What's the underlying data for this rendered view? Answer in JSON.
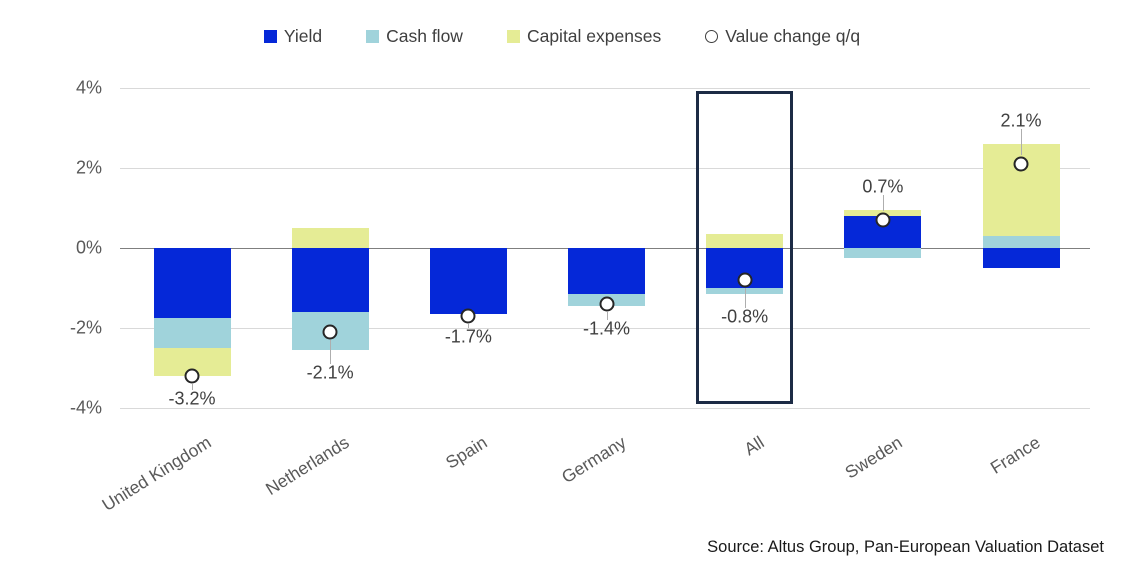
{
  "legend": [
    {
      "label": "Yield",
      "swatch": "square",
      "color": "#0528d8"
    },
    {
      "label": "Cash flow",
      "swatch": "square",
      "color": "#a0d3db"
    },
    {
      "label": "Capital expenses",
      "swatch": "square",
      "color": "#e5ec95"
    },
    {
      "label": "Value change q/q",
      "swatch": "circle",
      "color": "#ffffff"
    }
  ],
  "chart_data": {
    "type": "bar",
    "stacked": true,
    "grid": "horizontal",
    "legend_position": "top",
    "ylim": [
      -4,
      4
    ],
    "y_ticks": [
      {
        "label": "4%",
        "value": 4
      },
      {
        "label": "2%",
        "value": 2
      },
      {
        "label": "0%",
        "value": 0
      },
      {
        "label": "-2%",
        "value": -2
      },
      {
        "label": "-4%",
        "value": -4
      }
    ],
    "categories": [
      "United Kingdom",
      "Netherlands",
      "Spain",
      "Germany",
      "All",
      "Sweden",
      "France"
    ],
    "series": [
      {
        "name": "Yield",
        "color": "#0528d8",
        "values": [
          -1.75,
          -1.6,
          -1.65,
          -1.15,
          -1.0,
          0.8,
          -0.5
        ]
      },
      {
        "name": "Cash flow",
        "color": "#a0d3db",
        "values": [
          -0.75,
          -0.95,
          0,
          -0.3,
          -0.15,
          -0.25,
          0.3
        ]
      },
      {
        "name": "Capital expenses",
        "color": "#e5ec95",
        "values": [
          -0.7,
          0.5,
          0,
          0,
          0.35,
          0.15,
          2.3
        ]
      }
    ],
    "markers": {
      "name": "Value change q/q",
      "values": [
        -3.2,
        -2.1,
        -1.7,
        -1.4,
        -0.8,
        0.7,
        2.1
      ],
      "labels": [
        "-3.2%",
        "-2.1%",
        "-1.7%",
        "-1.4%",
        "-0.8%",
        "0.7%",
        "2.1%"
      ]
    },
    "highlight_category": "All"
  },
  "source": "Source:  Altus Group, Pan-European Valuation Dataset"
}
